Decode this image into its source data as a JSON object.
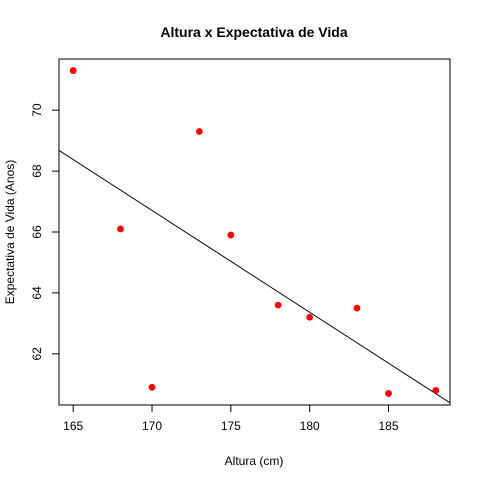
{
  "chart_data": {
    "type": "scatter",
    "title": "Altura x Expectativa de Vida",
    "xlabel": "Altura (cm)",
    "ylabel": "Expectativa de Vida (Anos)",
    "xlim": [
      164.1,
      188.9
    ],
    "ylim": [
      60.32,
      71.68
    ],
    "xticks": [
      165,
      170,
      175,
      180,
      185
    ],
    "yticks": [
      62,
      64,
      66,
      68,
      70
    ],
    "grid": false,
    "legend": "none",
    "series": [
      {
        "x": [
          165,
          168,
          170,
          173,
          175,
          178,
          180,
          183,
          185,
          188
        ],
        "y": [
          71.3,
          66.1,
          60.9,
          69.3,
          65.9,
          63.6,
          63.2,
          63.5,
          60.7,
          60.8
        ],
        "color": "#ff0000"
      }
    ],
    "regression_line": {
      "x": [
        164.1,
        188.9
      ],
      "y": [
        68.68,
        60.39
      ],
      "color": "#000000"
    }
  }
}
